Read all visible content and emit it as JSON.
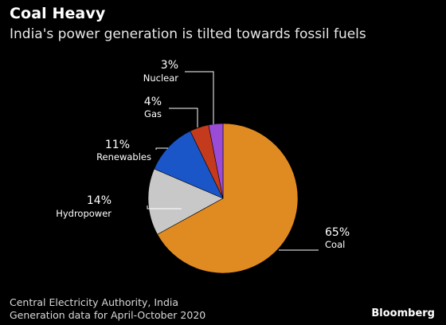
{
  "title": "Coal Heavy",
  "subtitle": "India's power generation is tilted towards fossil fuels",
  "source": {
    "line1": "Central Electricity Authority, India",
    "line2": "Generation data for April-October 2020"
  },
  "brand": "Bloomberg",
  "chart_data": {
    "type": "pie",
    "title": "Coal Heavy",
    "subtitle": "India's power generation is tilted towards fossil fuels",
    "slices": [
      {
        "label": "Coal",
        "value": 65,
        "value_label": "65%",
        "color": "#e08b22"
      },
      {
        "label": "Hydropower",
        "value": 14,
        "value_label": "14%",
        "color": "#c8c8c8"
      },
      {
        "label": "Renewables",
        "value": 11,
        "value_label": "11%",
        "color": "#1a56c8"
      },
      {
        "label": "Gas",
        "value": 4,
        "value_label": "4%",
        "color": "#c43a1c"
      },
      {
        "label": "Nuclear",
        "value": 3,
        "value_label": "3%",
        "color": "#9a4cd6"
      }
    ]
  }
}
